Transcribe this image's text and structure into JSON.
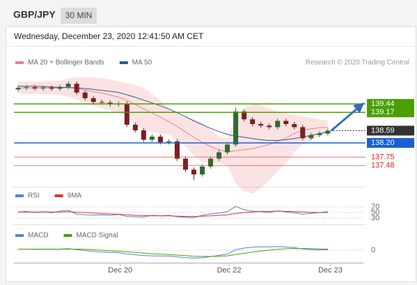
{
  "header": {
    "symbol": "GBP/JPY",
    "timeframe": "30 MIN"
  },
  "timestamp": "Wednesday, December 23, 2020 12:41:50 AM CET",
  "chart_data": [
    {
      "type": "candlestick",
      "attribution": "Research © 2020 Trading Central",
      "up_color": "#2e6b2e",
      "down_color": "#7a1f1f",
      "open": [
        139.9,
        139.95,
        139.97,
        139.93,
        139.96,
        139.92,
        139.98,
        140.08,
        139.8,
        139.62,
        139.5,
        139.48,
        139.42,
        139.45,
        138.78,
        138.6,
        138.3,
        138.4,
        138.22,
        138.25,
        137.7,
        137.35,
        137.2,
        137.45,
        137.7,
        137.9,
        138.15,
        139.2,
        138.95,
        138.8,
        138.75,
        138.7,
        138.9,
        138.8,
        138.7,
        138.35,
        138.45,
        138.5
      ],
      "high": [
        140.02,
        140.04,
        140.04,
        140.03,
        140.03,
        140.05,
        140.15,
        140.15,
        139.87,
        139.69,
        139.57,
        139.55,
        139.52,
        139.52,
        138.85,
        138.67,
        138.47,
        138.47,
        138.32,
        138.32,
        137.77,
        137.42,
        137.52,
        137.77,
        137.97,
        138.22,
        139.32,
        139.27,
        139.02,
        138.87,
        138.82,
        138.97,
        138.97,
        138.87,
        138.77,
        138.52,
        138.57,
        138.66
      ],
      "low": [
        139.83,
        139.88,
        139.86,
        139.86,
        139.85,
        139.85,
        139.91,
        139.73,
        139.55,
        139.43,
        139.41,
        139.35,
        139.35,
        138.71,
        138.53,
        138.23,
        138.23,
        138.15,
        138.15,
        137.63,
        137.28,
        137.03,
        137.13,
        137.38,
        137.63,
        137.83,
        138.08,
        138.88,
        138.73,
        138.68,
        138.63,
        138.63,
        138.73,
        138.63,
        138.28,
        138.28,
        138.38,
        138.43
      ],
      "close": [
        139.95,
        139.97,
        139.93,
        139.96,
        139.92,
        139.98,
        140.08,
        139.8,
        139.62,
        139.5,
        139.48,
        139.42,
        139.45,
        138.78,
        138.6,
        138.3,
        138.4,
        138.22,
        138.25,
        137.7,
        137.35,
        137.2,
        137.45,
        137.7,
        137.9,
        138.15,
        139.2,
        138.95,
        138.8,
        138.75,
        138.7,
        138.9,
        138.8,
        138.7,
        138.35,
        138.45,
        138.5,
        138.59
      ],
      "series": [
        {
          "name": "MA 20 + Bollinger Bands",
          "color": "#f08080",
          "values": [
            139.95,
            139.95,
            139.95,
            139.95,
            139.95,
            139.95,
            139.96,
            139.93,
            139.88,
            139.83,
            139.78,
            139.72,
            139.66,
            139.55,
            139.42,
            139.28,
            139.15,
            139.02,
            138.88,
            138.72,
            138.55,
            138.38,
            138.22,
            138.08,
            137.98,
            137.92,
            137.95,
            137.98,
            138.02,
            138.08,
            138.15,
            138.25,
            138.35,
            138.5,
            138.6,
            138.65,
            138.68,
            138.7
          ],
          "upper": [
            140.15,
            140.15,
            140.15,
            140.16,
            140.17,
            140.18,
            140.25,
            140.28,
            140.3,
            140.28,
            140.25,
            140.22,
            140.15,
            140.1,
            140.05,
            139.95,
            139.75,
            139.55,
            139.3,
            139.15,
            139.0,
            138.95,
            138.85,
            138.6,
            138.4,
            138.35,
            139.0,
            139.3,
            139.45,
            139.4,
            139.3,
            139.2,
            139.15,
            139.1,
            139.05,
            139.0,
            138.95,
            138.92
          ],
          "lower": [
            139.75,
            139.75,
            139.75,
            139.74,
            139.73,
            139.72,
            139.67,
            139.58,
            139.46,
            139.38,
            139.31,
            139.22,
            139.17,
            139.0,
            138.79,
            138.61,
            138.55,
            138.49,
            138.46,
            138.29,
            138.1,
            137.81,
            137.59,
            137.56,
            137.56,
            137.49,
            136.9,
            136.66,
            136.59,
            136.76,
            137.0,
            137.3,
            137.55,
            137.9,
            138.15,
            138.3,
            138.41,
            138.48
          ]
        },
        {
          "name": "MA 50",
          "color": "#2f5597",
          "values": [
            140.0,
            140.0,
            140.0,
            139.99,
            139.98,
            139.97,
            139.96,
            139.95,
            139.93,
            139.9,
            139.87,
            139.84,
            139.8,
            139.73,
            139.65,
            139.56,
            139.47,
            139.38,
            139.28,
            139.16,
            139.03,
            138.9,
            138.78,
            138.66,
            138.56,
            138.47,
            138.42,
            138.38,
            138.34,
            138.3,
            138.28,
            138.28,
            138.3,
            138.34,
            138.38,
            138.44,
            138.5,
            138.55
          ]
        }
      ],
      "levels": [
        {
          "value": 139.44,
          "label": "139.44",
          "color": "#4aa000",
          "label_box": true,
          "line": "solid"
        },
        {
          "value": 139.17,
          "label": "139.17",
          "color": "#4aa000",
          "label_box": true,
          "line": "solid"
        },
        {
          "value": 138.59,
          "label": "138.59",
          "color": "#333333",
          "label_box": true,
          "line": "dotted"
        },
        {
          "value": 138.2,
          "label": "138.20",
          "color": "#1a5fd6",
          "label_box": true,
          "line": "solid"
        },
        {
          "value": 137.75,
          "label": "137.75",
          "color": "#e02020",
          "label_box": false,
          "line": "solid"
        },
        {
          "value": 137.48,
          "label": "137.48",
          "color": "#e02020",
          "label_box": false,
          "line": "solid"
        }
      ],
      "xlim": [
        0,
        42
      ],
      "ylim": [
        136.94,
        140.97
      ]
    },
    {
      "type": "line",
      "series": [
        {
          "name": "RSI",
          "color": "#5b7fd6",
          "values": [
            52,
            54,
            50,
            53,
            49,
            55,
            58,
            44,
            42,
            41,
            42,
            40,
            43,
            36,
            35,
            34,
            40,
            38,
            40,
            35,
            33,
            32,
            40,
            45,
            48,
            53,
            72,
            60,
            55,
            53,
            50,
            56,
            52,
            49,
            44,
            47,
            50,
            53
          ]
        },
        {
          "name": "9MA",
          "color": "#e03030",
          "values": [
            52,
            52,
            52,
            52,
            52,
            52,
            53,
            51,
            50,
            48,
            47,
            45,
            44,
            42,
            40,
            39,
            38,
            38,
            38,
            37,
            36,
            36,
            37,
            38,
            40,
            42,
            47,
            50,
            52,
            54,
            54,
            55,
            54,
            53,
            52,
            51,
            50,
            50
          ]
        }
      ],
      "xlim": [
        0,
        42
      ],
      "ylim": [
        17.5,
        92.5
      ],
      "yticks": [
        30,
        50,
        70
      ]
    },
    {
      "type": "line",
      "series": [
        {
          "name": "MACD",
          "color": "#5b7fd6",
          "values": [
            0.05,
            0.05,
            0.04,
            0.05,
            0.04,
            0.05,
            0.07,
            0.03,
            -0.02,
            -0.06,
            -0.09,
            -0.11,
            -0.12,
            -0.18,
            -0.22,
            -0.26,
            -0.27,
            -0.28,
            -0.28,
            -0.32,
            -0.36,
            -0.38,
            -0.36,
            -0.31,
            -0.25,
            -0.18,
            0.02,
            0.1,
            0.14,
            0.16,
            0.16,
            0.17,
            0.15,
            0.12,
            0.06,
            0.03,
            0.02,
            0.02
          ]
        },
        {
          "name": "MACD Signal",
          "color": "#4aa000",
          "values": [
            0.05,
            0.05,
            0.05,
            0.05,
            0.05,
            0.05,
            0.05,
            0.05,
            0.04,
            0.02,
            -0.01,
            -0.03,
            -0.05,
            -0.08,
            -0.11,
            -0.14,
            -0.17,
            -0.19,
            -0.21,
            -0.24,
            -0.26,
            -0.29,
            -0.3,
            -0.3,
            -0.29,
            -0.27,
            -0.21,
            -0.15,
            -0.09,
            -0.04,
            0.0,
            0.04,
            0.07,
            0.08,
            0.08,
            0.07,
            0.06,
            0.05
          ]
        }
      ],
      "xlim": [
        0,
        42
      ],
      "ylim": [
        -0.8,
        0.8
      ],
      "yticks": [
        0
      ],
      "xticks": [
        {
          "value": 12.7,
          "label": "Dec 20"
        },
        {
          "value": 25.7,
          "label": "Dec 22"
        },
        {
          "value": 37.8,
          "label": "Dec 23"
        }
      ]
    }
  ]
}
